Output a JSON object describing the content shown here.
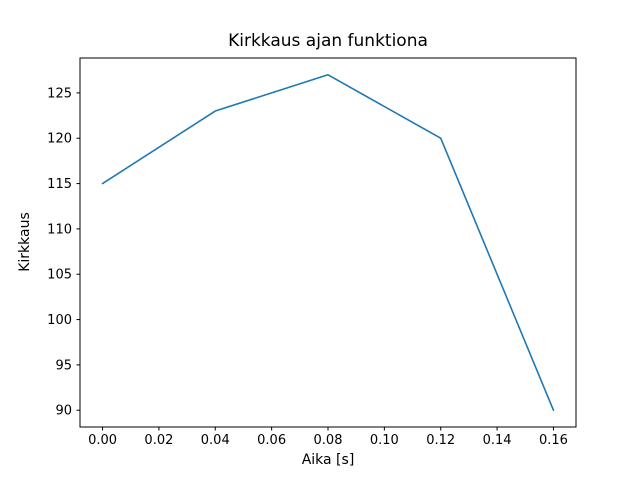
{
  "chart_data": {
    "type": "line",
    "title": "Kirkkaus ajan funktiona",
    "xlabel": "Aika [s]",
    "ylabel": "Kirkkaus",
    "x": [
      0.0,
      0.04,
      0.08,
      0.12,
      0.16
    ],
    "y": [
      115,
      123,
      127,
      120,
      90
    ],
    "xlim": [
      -0.008,
      0.168
    ],
    "ylim": [
      88.15,
      128.85
    ],
    "xticks": [
      0.0,
      0.02,
      0.04,
      0.06,
      0.08,
      0.1,
      0.12,
      0.14,
      0.16
    ],
    "xtick_labels": [
      "0.00",
      "0.02",
      "0.04",
      "0.06",
      "0.08",
      "0.10",
      "0.12",
      "0.14",
      "0.16"
    ],
    "yticks": [
      90,
      95,
      100,
      105,
      110,
      115,
      120,
      125
    ],
    "ytick_labels": [
      "90",
      "95",
      "100",
      "105",
      "110",
      "115",
      "120",
      "125"
    ],
    "line_color": "#1f77b4",
    "axis_color": "#000000",
    "grid": false,
    "legend_position": "none"
  }
}
